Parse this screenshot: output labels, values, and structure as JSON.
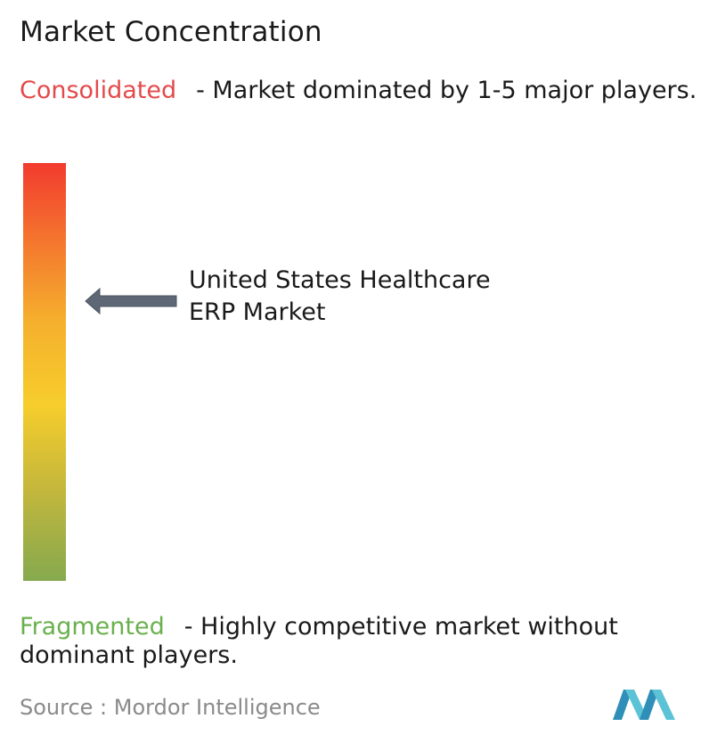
{
  "title": "Market Concentration",
  "consolidated": {
    "keyword": "Consolidated",
    "description": "- Market dominated by 1-5 major players."
  },
  "fragmented": {
    "keyword": "Fragmented",
    "description": "- Highly competitive market without dominant players."
  },
  "marker": {
    "label_line1": "United States Healthcare",
    "label_line2": "ERP Market"
  },
  "source": "Source :  Mordor Intelligence",
  "colors": {
    "consolidated": "#e34a4a",
    "fragmented": "#6ab04c",
    "arrow": "#5d6775",
    "logo": "#4aa5c8"
  },
  "chart_data": {
    "type": "bar",
    "title": "Market Concentration",
    "scale_top_label": "Consolidated",
    "scale_bottom_label": "Fragmented",
    "marker_label": "United States Healthcare ERP Market",
    "marker_level": 0.68
  }
}
